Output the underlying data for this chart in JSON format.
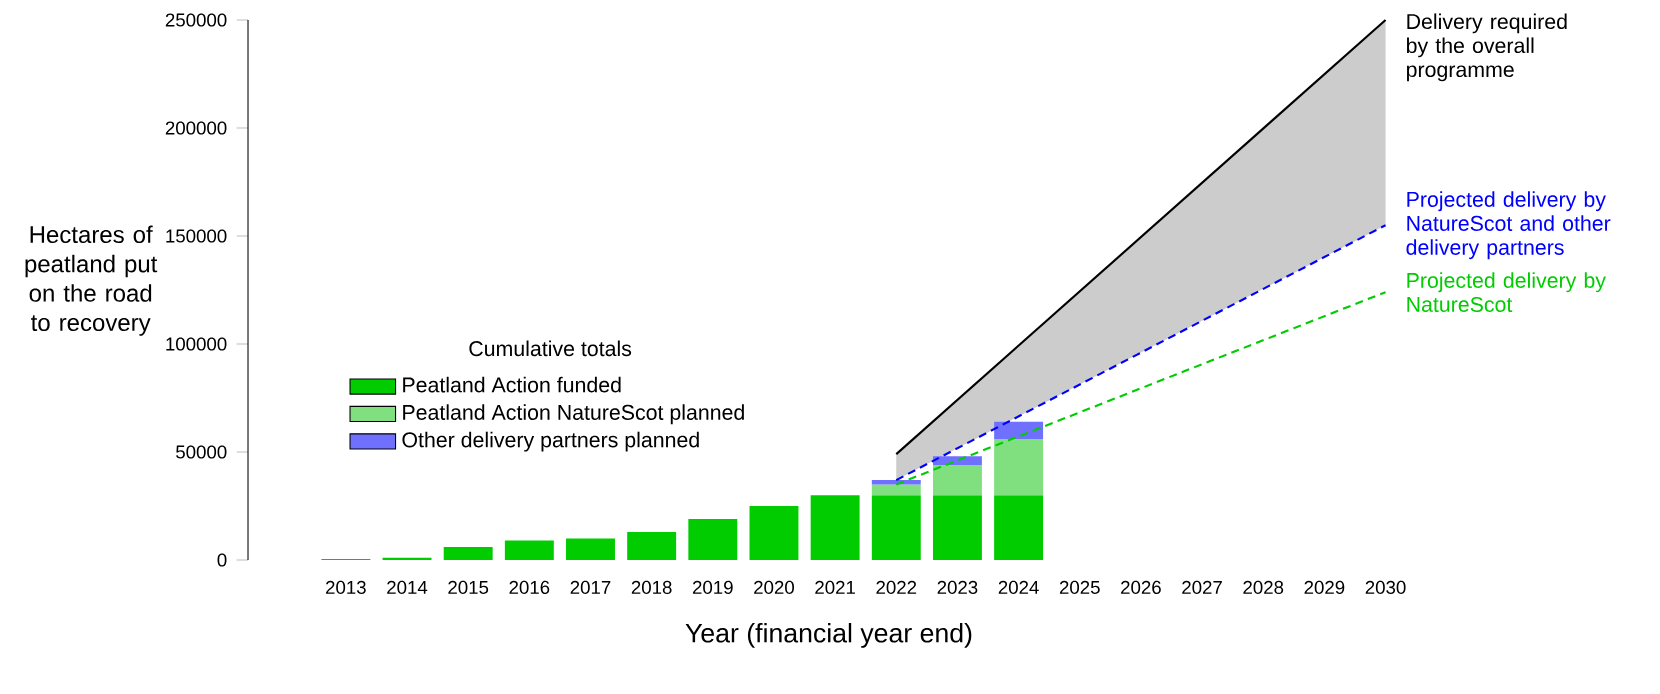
{
  "chart_data": {
    "type": "bar",
    "stacked": true,
    "ylabel": "Hectares of peatland put on the road to recovery",
    "xlabel": "Year (financial year end)",
    "legend_title": "Cumulative totals",
    "legend": "left",
    "categories": [
      "2013",
      "2014",
      "2015",
      "2016",
      "2017",
      "2018",
      "2019",
      "2020",
      "2021",
      "2022",
      "2023",
      "2024",
      "2025",
      "2026",
      "2027",
      "2028",
      "2029",
      "2030"
    ],
    "ylim": [
      0,
      250000
    ],
    "yticks": [
      0,
      50000,
      100000,
      150000,
      200000,
      250000
    ],
    "series": [
      {
        "name": "Peatland Action funded",
        "color": "#00cc00",
        "values": [
          500,
          1000,
          6000,
          9000,
          10000,
          13000,
          19000,
          25000,
          30000,
          30000,
          30000,
          30000,
          null,
          null,
          null,
          null,
          null,
          null
        ]
      },
      {
        "name": "Peatland Action NatureScot planned",
        "color": "#80e080",
        "values": [
          null,
          null,
          null,
          null,
          null,
          null,
          null,
          null,
          null,
          5000,
          14000,
          26000,
          null,
          null,
          null,
          null,
          null,
          null
        ]
      },
      {
        "name": "Other delivery partners planned",
        "color": "#7070ff",
        "values": [
          null,
          null,
          null,
          null,
          null,
          null,
          null,
          null,
          null,
          2000,
          4000,
          8000,
          null,
          null,
          null,
          null,
          null,
          null
        ]
      },
      {
        "type": "line",
        "name": "Delivery required by the overall programme",
        "color": "#000000",
        "line_style": "solid",
        "values": [
          null,
          null,
          null,
          null,
          null,
          null,
          null,
          null,
          null,
          49000,
          null,
          null,
          null,
          null,
          null,
          null,
          null,
          250000
        ],
        "lower": [
          null,
          null,
          null,
          null,
          null,
          null,
          null,
          null,
          null,
          37000,
          null,
          null,
          null,
          null,
          null,
          null,
          null,
          155000
        ],
        "upper": [
          null,
          null,
          null,
          null,
          null,
          null,
          null,
          null,
          null,
          49000,
          null,
          null,
          null,
          null,
          null,
          null,
          null,
          250000
        ]
      },
      {
        "type": "line",
        "name": "Projected delivery by NatureScot and other delivery partners",
        "color": "#0000ff",
        "line_style": "dashed",
        "values": [
          null,
          null,
          null,
          null,
          null,
          null,
          null,
          null,
          null,
          37000,
          null,
          null,
          null,
          null,
          null,
          null,
          null,
          155000
        ]
      },
      {
        "type": "line",
        "name": "Projected delivery by NatureScot",
        "color": "#00cc00",
        "line_style": "dashed",
        "values": [
          null,
          null,
          null,
          null,
          null,
          null,
          null,
          null,
          null,
          35000,
          null,
          null,
          null,
          null,
          null,
          null,
          null,
          124000
        ]
      }
    ]
  }
}
